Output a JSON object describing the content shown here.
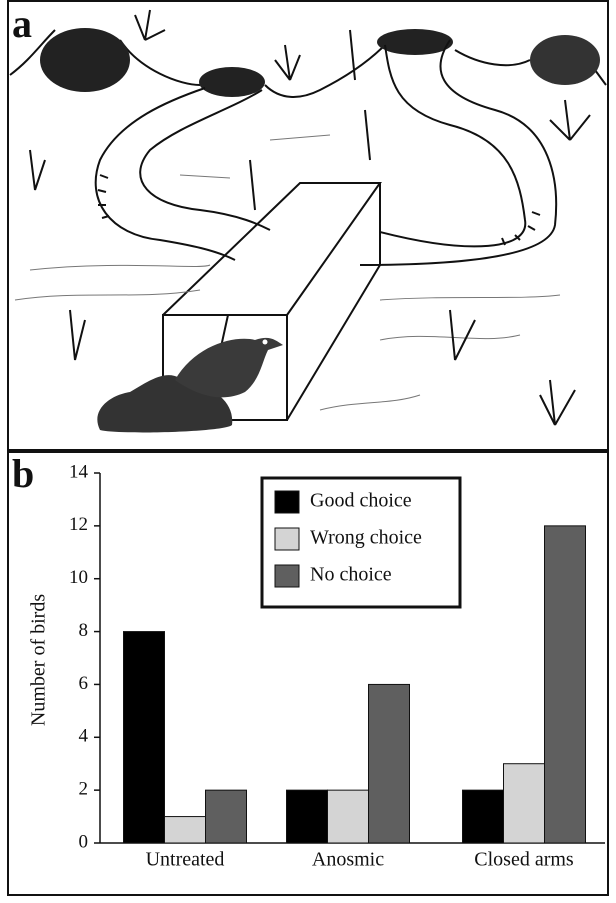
{
  "panel_labels": [
    "a",
    "b"
  ],
  "chart_data": {
    "type": "bar",
    "ylabel": "Number of birds",
    "categories": [
      "Untreated",
      "Anosmic",
      "Closed arms"
    ],
    "series": [
      {
        "name": "Good choice",
        "color": "#000000",
        "values": [
          8,
          2,
          2
        ]
      },
      {
        "name": "Wrong choice",
        "color": "#d4d4d4",
        "values": [
          1,
          2,
          3
        ]
      },
      {
        "name": "No choice",
        "color": "#5f5f5f",
        "values": [
          2,
          6,
          12
        ]
      }
    ],
    "ylim": [
      0,
      14
    ],
    "yticks": [
      0,
      2,
      4,
      6,
      8,
      10,
      12,
      14
    ],
    "grid": false
  }
}
